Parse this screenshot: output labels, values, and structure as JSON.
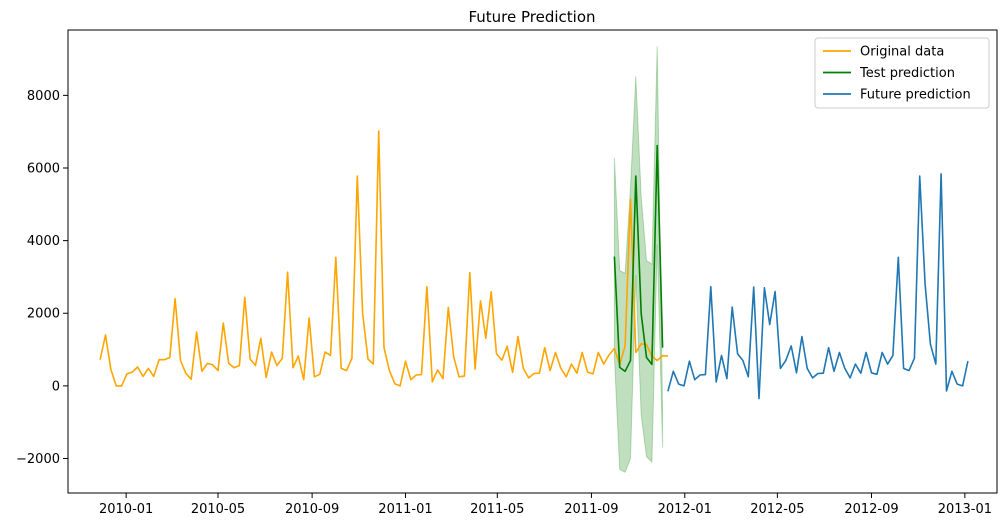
{
  "chart_data": {
    "type": "line",
    "title": "Future Prediction",
    "xlabel": "",
    "ylabel": "",
    "x_axis": {
      "type": "date",
      "range": [
        "2009-10-17",
        "2013-02-12"
      ],
      "ticks": [
        {
          "date": "2010-01-01",
          "label": "2010-01"
        },
        {
          "date": "2010-05-01",
          "label": "2010-05"
        },
        {
          "date": "2010-09-01",
          "label": "2010-09"
        },
        {
          "date": "2011-01-01",
          "label": "2011-01"
        },
        {
          "date": "2011-05-01",
          "label": "2011-05"
        },
        {
          "date": "2011-09-01",
          "label": "2011-09"
        },
        {
          "date": "2012-01-01",
          "label": "2012-01"
        },
        {
          "date": "2012-05-01",
          "label": "2012-05"
        },
        {
          "date": "2012-09-01",
          "label": "2012-09"
        },
        {
          "date": "2013-01-01",
          "label": "2013-01"
        }
      ]
    },
    "y_axis": {
      "range": [
        -2950,
        9800
      ],
      "ticks": [
        -2000,
        0,
        2000,
        4000,
        6000,
        8000
      ]
    },
    "grid": false,
    "legend": {
      "placement": "top-right"
    },
    "series": [
      {
        "name": "Original data",
        "color": "#ffa500",
        "points": [
          [
            "2009-11-28",
            720
          ],
          [
            "2009-12-05",
            1400
          ],
          [
            "2009-12-12",
            450
          ],
          [
            "2009-12-19",
            0
          ],
          [
            "2009-12-26",
            0
          ],
          [
            "2010-01-02",
            330
          ],
          [
            "2010-01-09",
            380
          ],
          [
            "2010-01-16",
            520
          ],
          [
            "2010-01-23",
            260
          ],
          [
            "2010-01-30",
            480
          ],
          [
            "2010-02-06",
            260
          ],
          [
            "2010-02-13",
            720
          ],
          [
            "2010-02-20",
            720
          ],
          [
            "2010-02-27",
            780
          ],
          [
            "2010-03-06",
            2400
          ],
          [
            "2010-03-13",
            700
          ],
          [
            "2010-03-20",
            350
          ],
          [
            "2010-03-27",
            180
          ],
          [
            "2010-04-03",
            1480
          ],
          [
            "2010-04-10",
            400
          ],
          [
            "2010-04-17",
            620
          ],
          [
            "2010-04-24",
            580
          ],
          [
            "2010-05-01",
            420
          ],
          [
            "2010-05-08",
            1730
          ],
          [
            "2010-05-15",
            620
          ],
          [
            "2010-05-22",
            500
          ],
          [
            "2010-05-29",
            560
          ],
          [
            "2010-06-05",
            2440
          ],
          [
            "2010-06-12",
            740
          ],
          [
            "2010-06-19",
            560
          ],
          [
            "2010-06-26",
            1310
          ],
          [
            "2010-07-03",
            230
          ],
          [
            "2010-07-10",
            930
          ],
          [
            "2010-07-17",
            560
          ],
          [
            "2010-07-24",
            760
          ],
          [
            "2010-07-31",
            3130
          ],
          [
            "2010-08-07",
            500
          ],
          [
            "2010-08-14",
            820
          ],
          [
            "2010-08-21",
            170
          ],
          [
            "2010-08-28",
            1870
          ],
          [
            "2010-09-04",
            250
          ],
          [
            "2010-09-11",
            320
          ],
          [
            "2010-09-18",
            930
          ],
          [
            "2010-09-25",
            840
          ],
          [
            "2010-10-02",
            3540
          ],
          [
            "2010-10-09",
            480
          ],
          [
            "2010-10-16",
            420
          ],
          [
            "2010-10-23",
            760
          ],
          [
            "2010-10-30",
            5780
          ],
          [
            "2010-11-06",
            2000
          ],
          [
            "2010-11-13",
            740
          ],
          [
            "2010-11-20",
            600
          ],
          [
            "2010-11-27",
            7020
          ],
          [
            "2010-12-04",
            1050
          ],
          [
            "2010-12-11",
            420
          ],
          [
            "2010-12-18",
            60
          ],
          [
            "2010-12-25",
            0
          ],
          [
            "2011-01-01",
            680
          ],
          [
            "2011-01-08",
            170
          ],
          [
            "2011-01-15",
            300
          ],
          [
            "2011-01-22",
            310
          ],
          [
            "2011-01-29",
            2730
          ],
          [
            "2011-02-05",
            110
          ],
          [
            "2011-02-12",
            440
          ],
          [
            "2011-02-19",
            200
          ],
          [
            "2011-02-26",
            2160
          ],
          [
            "2011-03-05",
            800
          ],
          [
            "2011-03-12",
            250
          ],
          [
            "2011-03-19",
            270
          ],
          [
            "2011-03-26",
            3120
          ],
          [
            "2011-04-02",
            460
          ],
          [
            "2011-04-09",
            2340
          ],
          [
            "2011-04-16",
            1310
          ],
          [
            "2011-04-23",
            2590
          ],
          [
            "2011-04-30",
            880
          ],
          [
            "2011-05-07",
            710
          ],
          [
            "2011-05-14",
            1090
          ],
          [
            "2011-05-21",
            370
          ],
          [
            "2011-05-28",
            1360
          ],
          [
            "2011-06-04",
            480
          ],
          [
            "2011-06-11",
            220
          ],
          [
            "2011-06-18",
            340
          ],
          [
            "2011-06-25",
            350
          ],
          [
            "2011-07-02",
            1050
          ],
          [
            "2011-07-09",
            420
          ],
          [
            "2011-07-16",
            920
          ],
          [
            "2011-07-23",
            490
          ],
          [
            "2011-07-30",
            250
          ],
          [
            "2011-08-06",
            600
          ],
          [
            "2011-08-13",
            350
          ],
          [
            "2011-08-20",
            920
          ],
          [
            "2011-08-27",
            380
          ],
          [
            "2011-09-03",
            330
          ],
          [
            "2011-09-10",
            920
          ],
          [
            "2011-09-17",
            600
          ],
          [
            "2011-09-24",
            850
          ],
          [
            "2011-10-01",
            1030
          ],
          [
            "2011-10-08",
            580
          ],
          [
            "2011-10-15",
            1100
          ],
          [
            "2011-10-22",
            5140
          ],
          [
            "2011-10-29",
            920
          ],
          [
            "2011-11-05",
            1160
          ],
          [
            "2011-11-12",
            1140
          ],
          [
            "2011-11-19",
            820
          ],
          [
            "2011-11-26",
            700
          ],
          [
            "2011-12-03",
            830
          ],
          [
            "2011-12-10",
            820
          ]
        ]
      },
      {
        "name": "Test prediction",
        "color": "#008000",
        "points": [
          [
            "2011-10-01",
            3560
          ],
          [
            "2011-10-08",
            510
          ],
          [
            "2011-10-15",
            400
          ],
          [
            "2011-10-22",
            700
          ],
          [
            "2011-10-29",
            5780
          ],
          [
            "2011-11-05",
            1990
          ],
          [
            "2011-11-12",
            780
          ],
          [
            "2011-11-19",
            590
          ],
          [
            "2011-11-26",
            6620
          ],
          [
            "2011-12-03",
            1050
          ]
        ],
        "band_upper": [
          6280,
          3180,
          3100,
          5450,
          8520,
          5200,
          3450,
          3350,
          9350,
          -700
        ],
        "band_lower": [
          800,
          -2300,
          -2380,
          -2000,
          3050,
          -800,
          -1950,
          -2100,
          3900,
          -1700
        ]
      },
      {
        "name": "Future prediction",
        "color": "#1f77b4",
        "points": [
          [
            "2011-12-10",
            -150
          ],
          [
            "2011-12-17",
            400
          ],
          [
            "2011-12-24",
            50
          ],
          [
            "2011-12-31",
            0
          ],
          [
            "2012-01-07",
            680
          ],
          [
            "2012-01-14",
            170
          ],
          [
            "2012-01-21",
            300
          ],
          [
            "2012-01-28",
            310
          ],
          [
            "2012-02-04",
            2730
          ],
          [
            "2012-02-11",
            110
          ],
          [
            "2012-02-18",
            840
          ],
          [
            "2012-02-25",
            200
          ],
          [
            "2012-03-03",
            2170
          ],
          [
            "2012-03-10",
            880
          ],
          [
            "2012-03-17",
            700
          ],
          [
            "2012-03-24",
            250
          ],
          [
            "2012-03-31",
            2720
          ],
          [
            "2012-04-07",
            -350
          ],
          [
            "2012-04-14",
            2700
          ],
          [
            "2012-04-21",
            1690
          ],
          [
            "2012-04-28",
            2600
          ],
          [
            "2012-05-05",
            480
          ],
          [
            "2012-05-12",
            700
          ],
          [
            "2012-05-19",
            1100
          ],
          [
            "2012-05-26",
            360
          ],
          [
            "2012-06-02",
            1360
          ],
          [
            "2012-06-09",
            480
          ],
          [
            "2012-06-16",
            220
          ],
          [
            "2012-06-23",
            340
          ],
          [
            "2012-06-30",
            350
          ],
          [
            "2012-07-07",
            1050
          ],
          [
            "2012-07-14",
            400
          ],
          [
            "2012-07-21",
            920
          ],
          [
            "2012-07-28",
            490
          ],
          [
            "2012-08-04",
            220
          ],
          [
            "2012-08-11",
            600
          ],
          [
            "2012-08-18",
            350
          ],
          [
            "2012-08-25",
            920
          ],
          [
            "2012-09-01",
            360
          ],
          [
            "2012-09-08",
            320
          ],
          [
            "2012-09-15",
            920
          ],
          [
            "2012-09-22",
            600
          ],
          [
            "2012-09-29",
            840
          ],
          [
            "2012-10-06",
            3540
          ],
          [
            "2012-10-13",
            480
          ],
          [
            "2012-10-20",
            420
          ],
          [
            "2012-10-27",
            760
          ],
          [
            "2012-11-03",
            5780
          ],
          [
            "2012-11-10",
            2800
          ],
          [
            "2012-11-17",
            1150
          ],
          [
            "2012-11-24",
            600
          ],
          [
            "2012-12-01",
            5840
          ],
          [
            "2012-12-08",
            -140
          ],
          [
            "2012-12-15",
            400
          ],
          [
            "2012-12-22",
            50
          ],
          [
            "2012-12-29",
            0
          ],
          [
            "2013-01-05",
            680
          ]
        ]
      }
    ]
  }
}
